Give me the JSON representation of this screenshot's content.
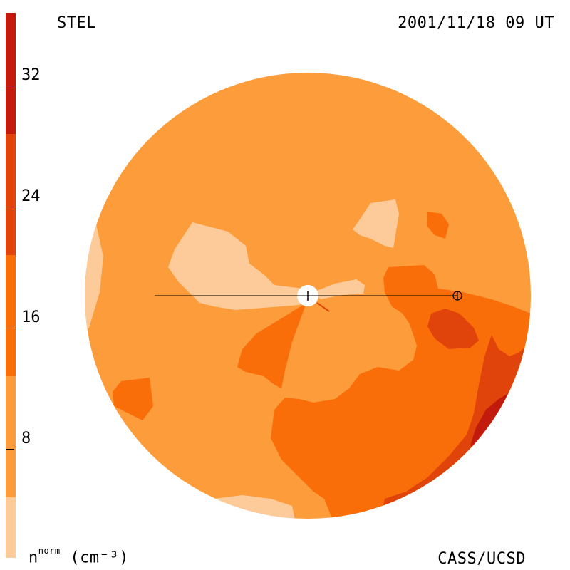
{
  "header": {
    "model": "STEL",
    "datetime": "2001/11/18 09 UT"
  },
  "footer": {
    "credit": "CASS/UCSD",
    "unit_base": "n",
    "unit_sup": "norm",
    "unit_rest": "(cm⁻³)"
  },
  "colorbar": {
    "range": [
      0,
      36
    ],
    "ticks": [
      "8",
      "16",
      "24",
      "32"
    ],
    "tick_values": [
      8,
      16,
      24,
      32
    ],
    "bands": [
      {
        "from": 0,
        "to": 4,
        "color": "#FDCB9A"
      },
      {
        "from": 4,
        "to": 12,
        "color": "#FC9C3A"
      },
      {
        "from": 12,
        "to": 20,
        "color": "#FA6E0A"
      },
      {
        "from": 20,
        "to": 28,
        "color": "#E0440A"
      },
      {
        "from": 28,
        "to": 36,
        "color": "#C21B0E"
      },
      {
        "from": 36,
        "to": 44,
        "color": "#96060A"
      },
      {
        "from": 44,
        "to": 52,
        "color": "#6B0508"
      },
      {
        "from": 52,
        "to": 60,
        "color": "#3D0404"
      },
      {
        "from": 60,
        "to": 68,
        "color": "#1A0101"
      }
    ]
  },
  "colors": {
    "light": "#FDCB9A",
    "base": "#FC9C3A",
    "orange": "#FA6E0A",
    "dark_orange": "#E0440A",
    "red": "#C21B0E",
    "white": "#FFFFFF"
  }
}
